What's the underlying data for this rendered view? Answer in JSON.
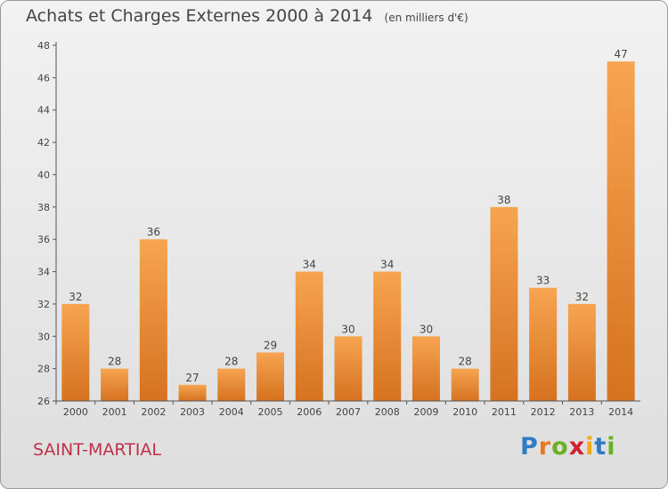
{
  "title": "Achats et Charges Externes 2000 à 2014",
  "subtitle": "(en milliers d'€)",
  "city": "SAINT-MARTIAL",
  "logo": {
    "text": "Proxiti",
    "letters": [
      {
        "ch": "P",
        "color": "#2e7cc4"
      },
      {
        "ch": "r",
        "color": "#e8781e"
      },
      {
        "ch": "o",
        "color": "#6ab023"
      },
      {
        "ch": "x",
        "color": "#d3202e"
      },
      {
        "ch": "i",
        "color": "#f0a81c"
      },
      {
        "ch": "t",
        "color": "#2e7cc4"
      },
      {
        "ch": "i",
        "color": "#6ab023"
      }
    ]
  },
  "colors": {
    "bar_light": "#f7a451",
    "bar_dark": "#d5721f",
    "axis": "#555555",
    "text": "#444444"
  },
  "chart_data": {
    "type": "bar",
    "title": "Achats et Charges Externes 2000 à 2014",
    "subtitle": "(en milliers d'€)",
    "categories": [
      "2000",
      "2001",
      "2002",
      "2003",
      "2004",
      "2005",
      "2006",
      "2007",
      "2008",
      "2009",
      "2010",
      "2011",
      "2012",
      "2013",
      "2014"
    ],
    "values": [
      32,
      28,
      36,
      27,
      28,
      29,
      34,
      30,
      34,
      30,
      28,
      38,
      33,
      32,
      47
    ],
    "ylim": [
      26,
      48
    ],
    "yticks": [
      26,
      28,
      30,
      32,
      34,
      36,
      38,
      40,
      42,
      44,
      46,
      48
    ],
    "grid": false,
    "data_labels": true
  }
}
